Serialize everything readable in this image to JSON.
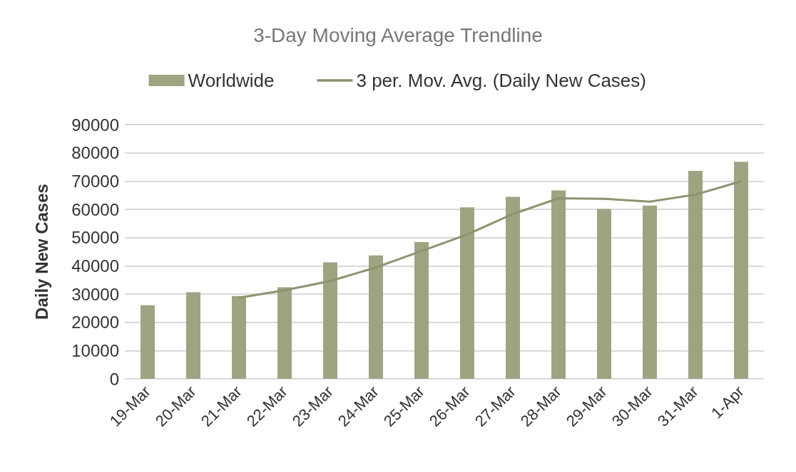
{
  "chart_data": {
    "type": "bar",
    "title": "3-Day Moving Average Trendline",
    "ylabel": "Daily New Cases",
    "categories": [
      "19-Mar",
      "20-Mar",
      "21-Mar",
      "22-Mar",
      "23-Mar",
      "24-Mar",
      "25-Mar",
      "26-Mar",
      "27-Mar",
      "28-Mar",
      "29-Mar",
      "30-Mar",
      "31-Mar",
      "1-Apr"
    ],
    "series": [
      {
        "name": "Worldwide",
        "color": "#9ea382",
        "values": [
          26000,
          30600,
          29300,
          32400,
          41200,
          43700,
          48400,
          60700,
          64400,
          66700,
          60100,
          61300,
          73600,
          76800
        ]
      },
      {
        "name": "3 per. Mov. Avg. (Daily New Cases)",
        "type": "line",
        "color": "#8c9370",
        "values": [
          null,
          null,
          28700,
          31300,
          34600,
          39400,
          45200,
          51100,
          58300,
          63900,
          63700,
          62700,
          65200,
          69900
        ]
      }
    ],
    "ylim": [
      0,
      90000
    ],
    "yticks": [
      0,
      10000,
      20000,
      30000,
      40000,
      50000,
      60000,
      70000,
      80000,
      90000
    ],
    "grid": "y",
    "legend": "top",
    "marker": "none"
  }
}
